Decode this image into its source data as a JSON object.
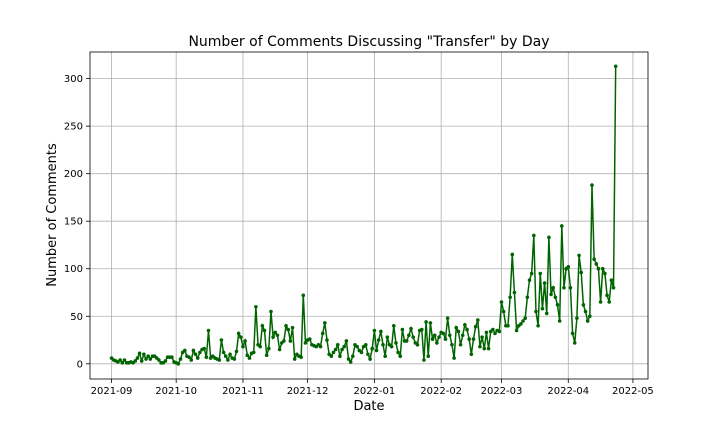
{
  "chart_data": {
    "type": "line",
    "title": "Number of Comments Discussing \"Transfer\" by Day",
    "xlabel": "Date",
    "ylabel": "Number of Comments",
    "xlim": [
      "2021-08-22",
      "2022-05-08"
    ],
    "ylim": [
      -16,
      328
    ],
    "grid": true,
    "line_color": "#006400",
    "marker": "circle",
    "x_ticks": [
      "2021-09-01",
      "2021-10-01",
      "2021-11-01",
      "2021-12-01",
      "2022-01-01",
      "2022-02-01",
      "2022-03-01",
      "2022-04-01",
      "2022-05-01"
    ],
    "x_tick_labels": [
      "2021-09",
      "2021-10",
      "2021-11",
      "2021-12",
      "2022-01",
      "2022-02",
      "2022-03",
      "2022-04",
      "2022-05"
    ],
    "y_ticks": [
      0,
      50,
      100,
      150,
      200,
      250,
      300
    ],
    "series": [
      {
        "name": "",
        "start_date": "2021-09-01",
        "values": [
          6,
          4,
          3,
          2,
          4,
          1,
          4,
          1,
          1,
          2,
          1,
          3,
          6,
          11,
          3,
          10,
          5,
          8,
          5,
          8,
          8,
          6,
          4,
          1,
          1,
          3,
          7,
          7,
          7,
          2,
          1,
          0,
          5,
          12,
          14,
          8,
          7,
          4,
          14,
          10,
          6,
          12,
          15,
          16,
          7,
          35,
          6,
          8,
          6,
          5,
          4,
          25,
          12,
          8,
          4,
          10,
          6,
          5,
          13,
          32,
          28,
          18,
          24,
          9,
          6,
          11,
          12,
          60,
          20,
          18,
          40,
          35,
          9,
          16,
          55,
          28,
          33,
          30,
          15,
          22,
          24,
          40,
          36,
          24,
          38,
          5,
          10,
          8,
          7,
          72,
          22,
          25,
          26,
          20,
          19,
          18,
          20,
          18,
          32,
          43,
          25,
          10,
          8,
          12,
          15,
          20,
          8,
          15,
          18,
          24,
          5,
          2,
          8,
          20,
          18,
          14,
          12,
          18,
          20,
          10,
          5,
          16,
          35,
          14,
          25,
          34,
          20,
          8,
          28,
          20,
          18,
          40,
          22,
          12,
          8,
          36,
          24,
          24,
          30,
          37,
          28,
          22,
          20,
          35,
          36,
          4,
          44,
          8,
          43,
          26,
          30,
          22,
          28,
          33,
          32,
          26,
          48,
          30,
          20,
          6,
          38,
          34,
          20,
          30,
          41,
          36,
          26,
          10,
          26,
          39,
          46,
          18,
          28,
          16,
          33,
          16,
          34,
          36,
          32,
          35,
          34,
          65,
          55,
          40,
          40,
          70,
          115,
          75,
          35,
          40,
          42,
          45,
          48,
          70,
          88,
          95,
          135,
          55,
          40,
          95,
          58,
          85,
          53,
          133,
          73,
          80,
          70,
          62,
          45,
          145,
          80,
          100,
          102,
          80,
          32,
          22,
          48,
          114,
          96,
          62,
          55,
          45,
          50,
          188,
          110,
          105,
          100,
          65,
          100,
          95,
          72,
          65,
          88,
          80,
          313
        ]
      }
    ]
  }
}
